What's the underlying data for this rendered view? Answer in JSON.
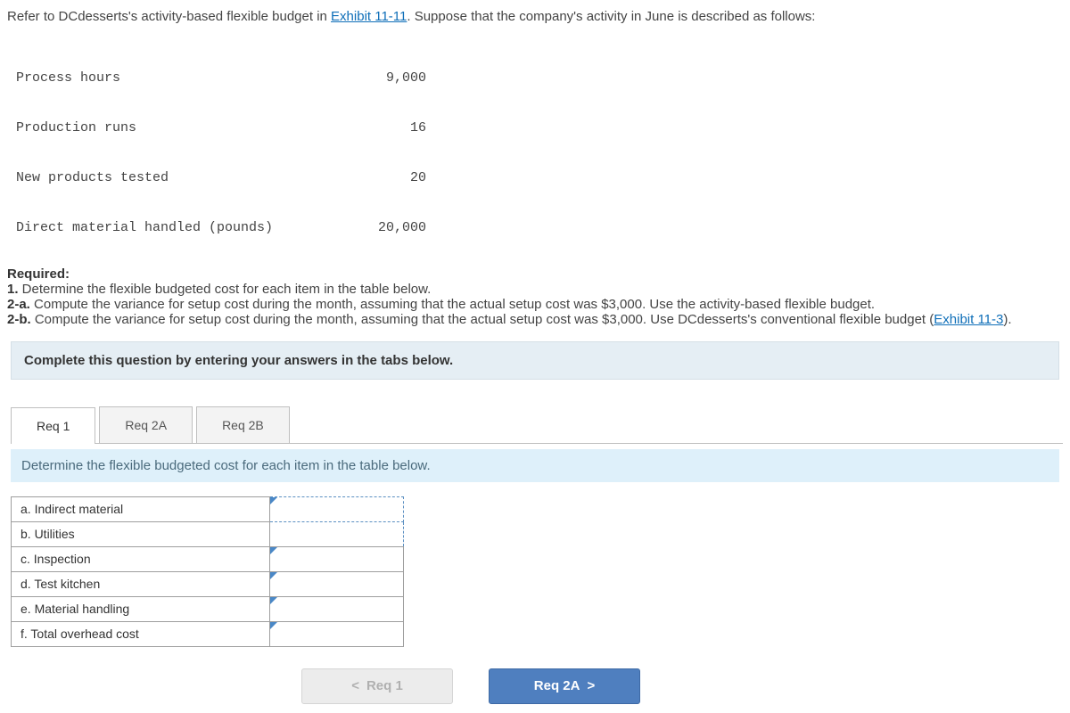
{
  "intro": {
    "pre": "Refer to DCdesserts's activity-based flexible budget in ",
    "link": "Exhibit 11-11",
    "post": ". Suppose that the company's activity in June is described as follows:"
  },
  "activity": [
    {
      "label": "Process hours",
      "value": "9,000"
    },
    {
      "label": "Production runs",
      "value": "16"
    },
    {
      "label": "New products tested",
      "value": "20"
    },
    {
      "label": "Direct material handled (pounds)",
      "value": "20,000"
    }
  ],
  "required": {
    "heading": "Required:",
    "r1_bold": "1.",
    "r1": " Determine the flexible budgeted cost for each item in the table below.",
    "r2a_bold": "2-a.",
    "r2a": " Compute the variance for setup cost during the month, assuming that the actual setup cost was $3,000. Use the activity-based flexible budget.",
    "r2b_bold": "2-b.",
    "r2b_pre": " Compute the variance for setup cost during the month, assuming that the actual setup cost was $3,000. Use DCdesserts's conventional flexible budget (",
    "r2b_link": "Exhibit 11-3",
    "r2b_post": ")."
  },
  "instruction_bar": "Complete this question by entering your answers in the tabs below.",
  "tabs": {
    "t1": "Req 1",
    "t2": "Req 2A",
    "t3": "Req 2B"
  },
  "sub_instruction": "Determine the flexible budgeted cost for each item in the table below.",
  "rows": [
    "a. Indirect material",
    "b. Utilities",
    "c. Inspection",
    "d. Test kitchen",
    "e. Material handling",
    "f. Total overhead cost"
  ],
  "nav": {
    "prev_chev": "<",
    "prev": "Req 1",
    "next": "Req 2A",
    "next_chev": ">"
  }
}
